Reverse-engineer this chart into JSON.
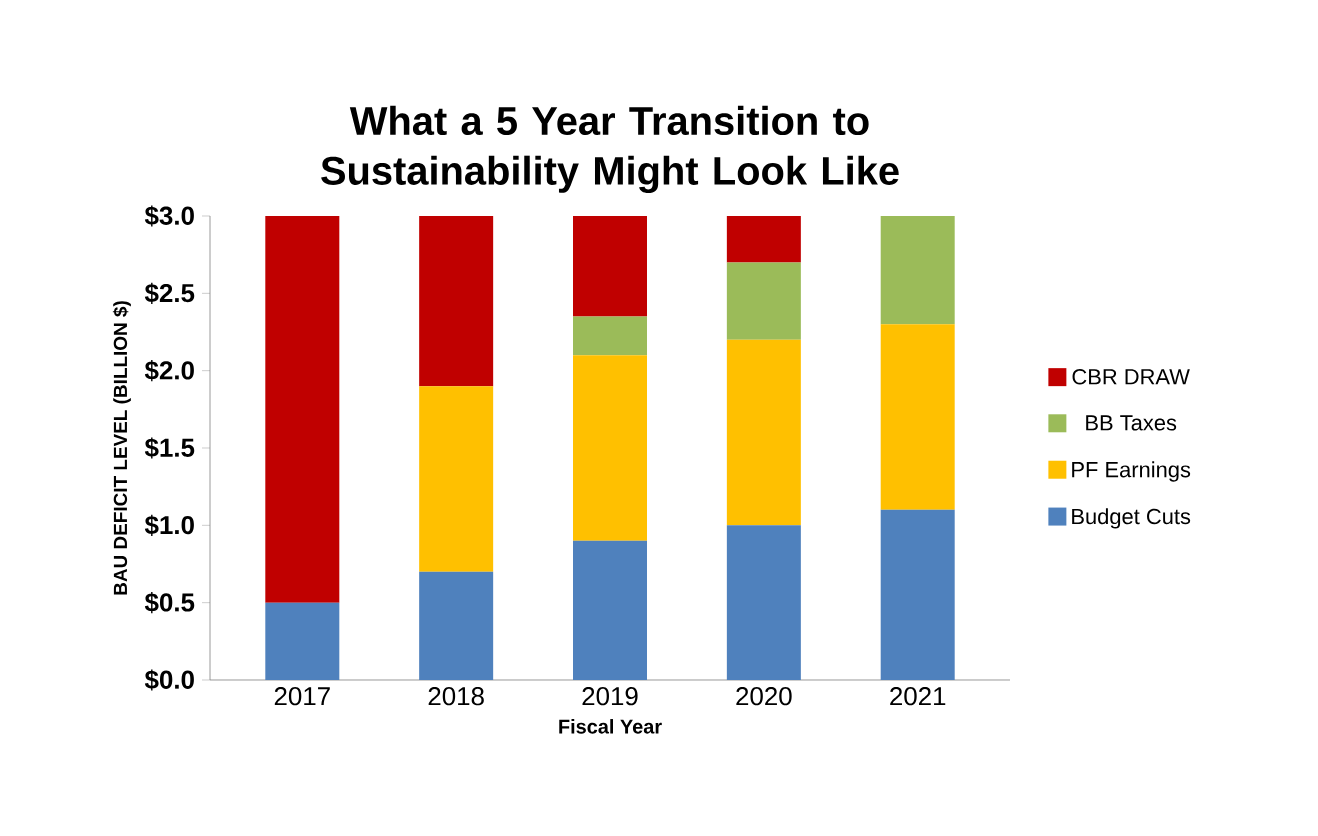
{
  "chart_data": {
    "type": "bar",
    "stacked": true,
    "title": "What a 5 Year Transition to Sustainability Might Look Like",
    "xlabel": "Fiscal Year",
    "ylabel": "BAU DEFICIT LEVEL (BILLION $)",
    "categories": [
      "2017",
      "2018",
      "2019",
      "2020",
      "2021"
    ],
    "series": [
      {
        "name": "Budget Cuts",
        "color": "#4f81bd",
        "values": [
          0.5,
          0.7,
          0.9,
          1.0,
          1.1
        ]
      },
      {
        "name": "PF Earnings",
        "color": "#ffc000",
        "values": [
          0,
          1.2,
          1.2,
          1.2,
          1.2
        ]
      },
      {
        "name": "BB Taxes",
        "color": "#9bbb59",
        "values": [
          0,
          0,
          0.25,
          0.5,
          0.7
        ]
      },
      {
        "name": "CBR DRAW",
        "color": "#c00000",
        "values": [
          2.5,
          1.1,
          0.65,
          0.3,
          0
        ]
      }
    ],
    "ylim": [
      0,
      3
    ],
    "yticks": [
      {
        "value": 0,
        "label": "$0.0"
      },
      {
        "value": 0.5,
        "label": "$0.5"
      },
      {
        "value": 1,
        "label": "$1.0"
      },
      {
        "value": 1.5,
        "label": "$1.5"
      },
      {
        "value": 2,
        "label": "$2.0"
      },
      {
        "value": 2.5,
        "label": "$2.5"
      },
      {
        "value": 3,
        "label": "$3.0"
      }
    ],
    "legend": "right"
  }
}
